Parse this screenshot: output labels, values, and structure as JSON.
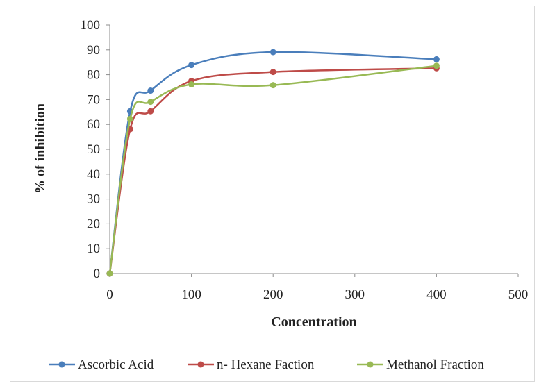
{
  "chart_data": {
    "type": "line",
    "title": "",
    "xlabel": "Concentration",
    "ylabel": "% of inhibition",
    "xlim": [
      0,
      500
    ],
    "ylim": [
      0,
      100
    ],
    "xticks": [
      "0",
      "100",
      "200",
      "300",
      "400",
      "500"
    ],
    "yticks": [
      "0",
      "10",
      "20",
      "30",
      "40",
      "50",
      "60",
      "70",
      "80",
      "90",
      "100"
    ],
    "grid": false,
    "legend": "bottom",
    "series": [
      {
        "name": "Ascorbic Acid",
        "color": "#4a7ebb",
        "x": [
          0,
          25,
          50,
          100,
          200,
          400
        ],
        "y": [
          0,
          65.3,
          73.6,
          83.9,
          89.1,
          86.2
        ]
      },
      {
        "name": "n- Hexane Faction",
        "color": "#be4b48",
        "x": [
          0,
          25,
          50,
          100,
          200,
          400
        ],
        "y": [
          0,
          58.1,
          65.3,
          77.5,
          81.1,
          82.6
        ]
      },
      {
        "name": "Methanol Fraction",
        "color": "#98b954",
        "x": [
          0,
          25,
          50,
          100,
          200,
          400
        ],
        "y": [
          0,
          62.2,
          69.1,
          76.1,
          75.8,
          83.6
        ]
      }
    ]
  }
}
